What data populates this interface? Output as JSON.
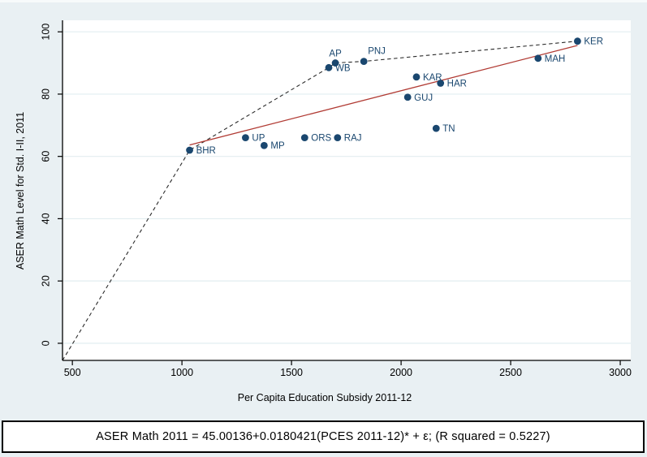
{
  "figure": {
    "background": "#e9f0f3",
    "caption": {
      "text": "ASER Math 2011 = 45.00136+0.0180421(PCES 2011-12)* + ε; (R squared = 0.5227)"
    }
  },
  "chart_data": {
    "type": "scatter",
    "title": "",
    "xlabel": "Per Capita Education Subsidy 2011-12",
    "ylabel": "ASER Math Level for Std. I-II, 2011",
    "xlim": [
      455,
      3048
    ],
    "ylim": [
      -5.5,
      103.7
    ],
    "x_ticks": [
      500,
      1000,
      1500,
      2000,
      2500,
      3000
    ],
    "y_ticks": [
      0,
      20,
      40,
      60,
      80,
      100
    ],
    "grid": "horizontal-only",
    "legend": "none",
    "colors": {
      "marker": "#1a476f",
      "marker_label": "#1a476f",
      "regression_line": "#b13b34",
      "frontier_line": "#2b2b2b",
      "gridline": "#e2edf0",
      "axis": "#000000",
      "plot_background": "#ffffff"
    },
    "points": [
      {
        "label": "BHR",
        "x": 1035,
        "y": 62,
        "label_pos": "right"
      },
      {
        "label": "UP",
        "x": 1290,
        "y": 66,
        "label_pos": "right"
      },
      {
        "label": "MP",
        "x": 1375,
        "y": 63.5,
        "label_pos": "right"
      },
      {
        "label": "ORS",
        "x": 1560,
        "y": 66,
        "label_pos": "right"
      },
      {
        "label": "RAJ",
        "x": 1710,
        "y": 66,
        "label_pos": "right"
      },
      {
        "label": "WB",
        "x": 1670,
        "y": 88.5,
        "label_pos": "right"
      },
      {
        "label": "AP",
        "x": 1700,
        "y": 90,
        "label_pos": "above"
      },
      {
        "label": "PNJ",
        "x": 1830,
        "y": 90.5,
        "label_pos": "above-right"
      },
      {
        "label": "GUJ",
        "x": 2030,
        "y": 79,
        "label_pos": "right"
      },
      {
        "label": "KAR",
        "x": 2070,
        "y": 85.5,
        "label_pos": "right"
      },
      {
        "label": "HAR",
        "x": 2180,
        "y": 83.5,
        "label_pos": "right"
      },
      {
        "label": "TN",
        "x": 2160,
        "y": 69,
        "label_pos": "right"
      },
      {
        "label": "MAH",
        "x": 2625,
        "y": 91.5,
        "label_pos": "right"
      },
      {
        "label": "KER",
        "x": 2805,
        "y": 97,
        "label_pos": "right"
      }
    ],
    "regression": {
      "intercept": 45.00136,
      "slope": 0.0180421,
      "x_start": 1035,
      "x_end": 2805,
      "r_squared": 0.5227
    },
    "frontier": {
      "style": "dashed",
      "points": [
        [
          455,
          -5.5
        ],
        [
          1035,
          62
        ],
        [
          1670,
          88.5
        ],
        [
          1700,
          90
        ],
        [
          1830,
          90.5
        ],
        [
          2805,
          97
        ]
      ]
    }
  }
}
